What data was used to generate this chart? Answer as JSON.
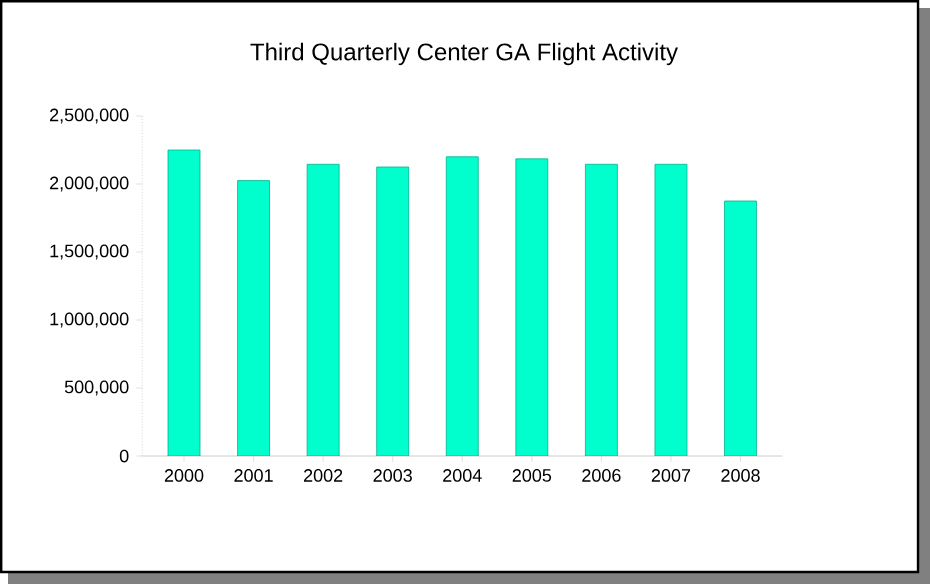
{
  "chart_data": {
    "type": "bar",
    "title": "Third Quarterly Center GA Flight Activity",
    "categories": [
      "2000",
      "2001",
      "2002",
      "2003",
      "2004",
      "2005",
      "2006",
      "2007",
      "2008"
    ],
    "values": [
      2250000,
      2025000,
      2145000,
      2125000,
      2200000,
      2185000,
      2145000,
      2145000,
      1875000
    ],
    "color": "#00ffcc",
    "ylim": [
      0,
      2500000
    ],
    "yticks": [
      {
        "value": 0,
        "label": "0"
      },
      {
        "value": 500000,
        "label": "500,000"
      },
      {
        "value": 1000000,
        "label": "1,000,000"
      },
      {
        "value": 1500000,
        "label": "1,500,000"
      },
      {
        "value": 2000000,
        "label": "2,000,000"
      },
      {
        "value": 2500000,
        "label": "2,500,000"
      }
    ],
    "grid": false
  }
}
